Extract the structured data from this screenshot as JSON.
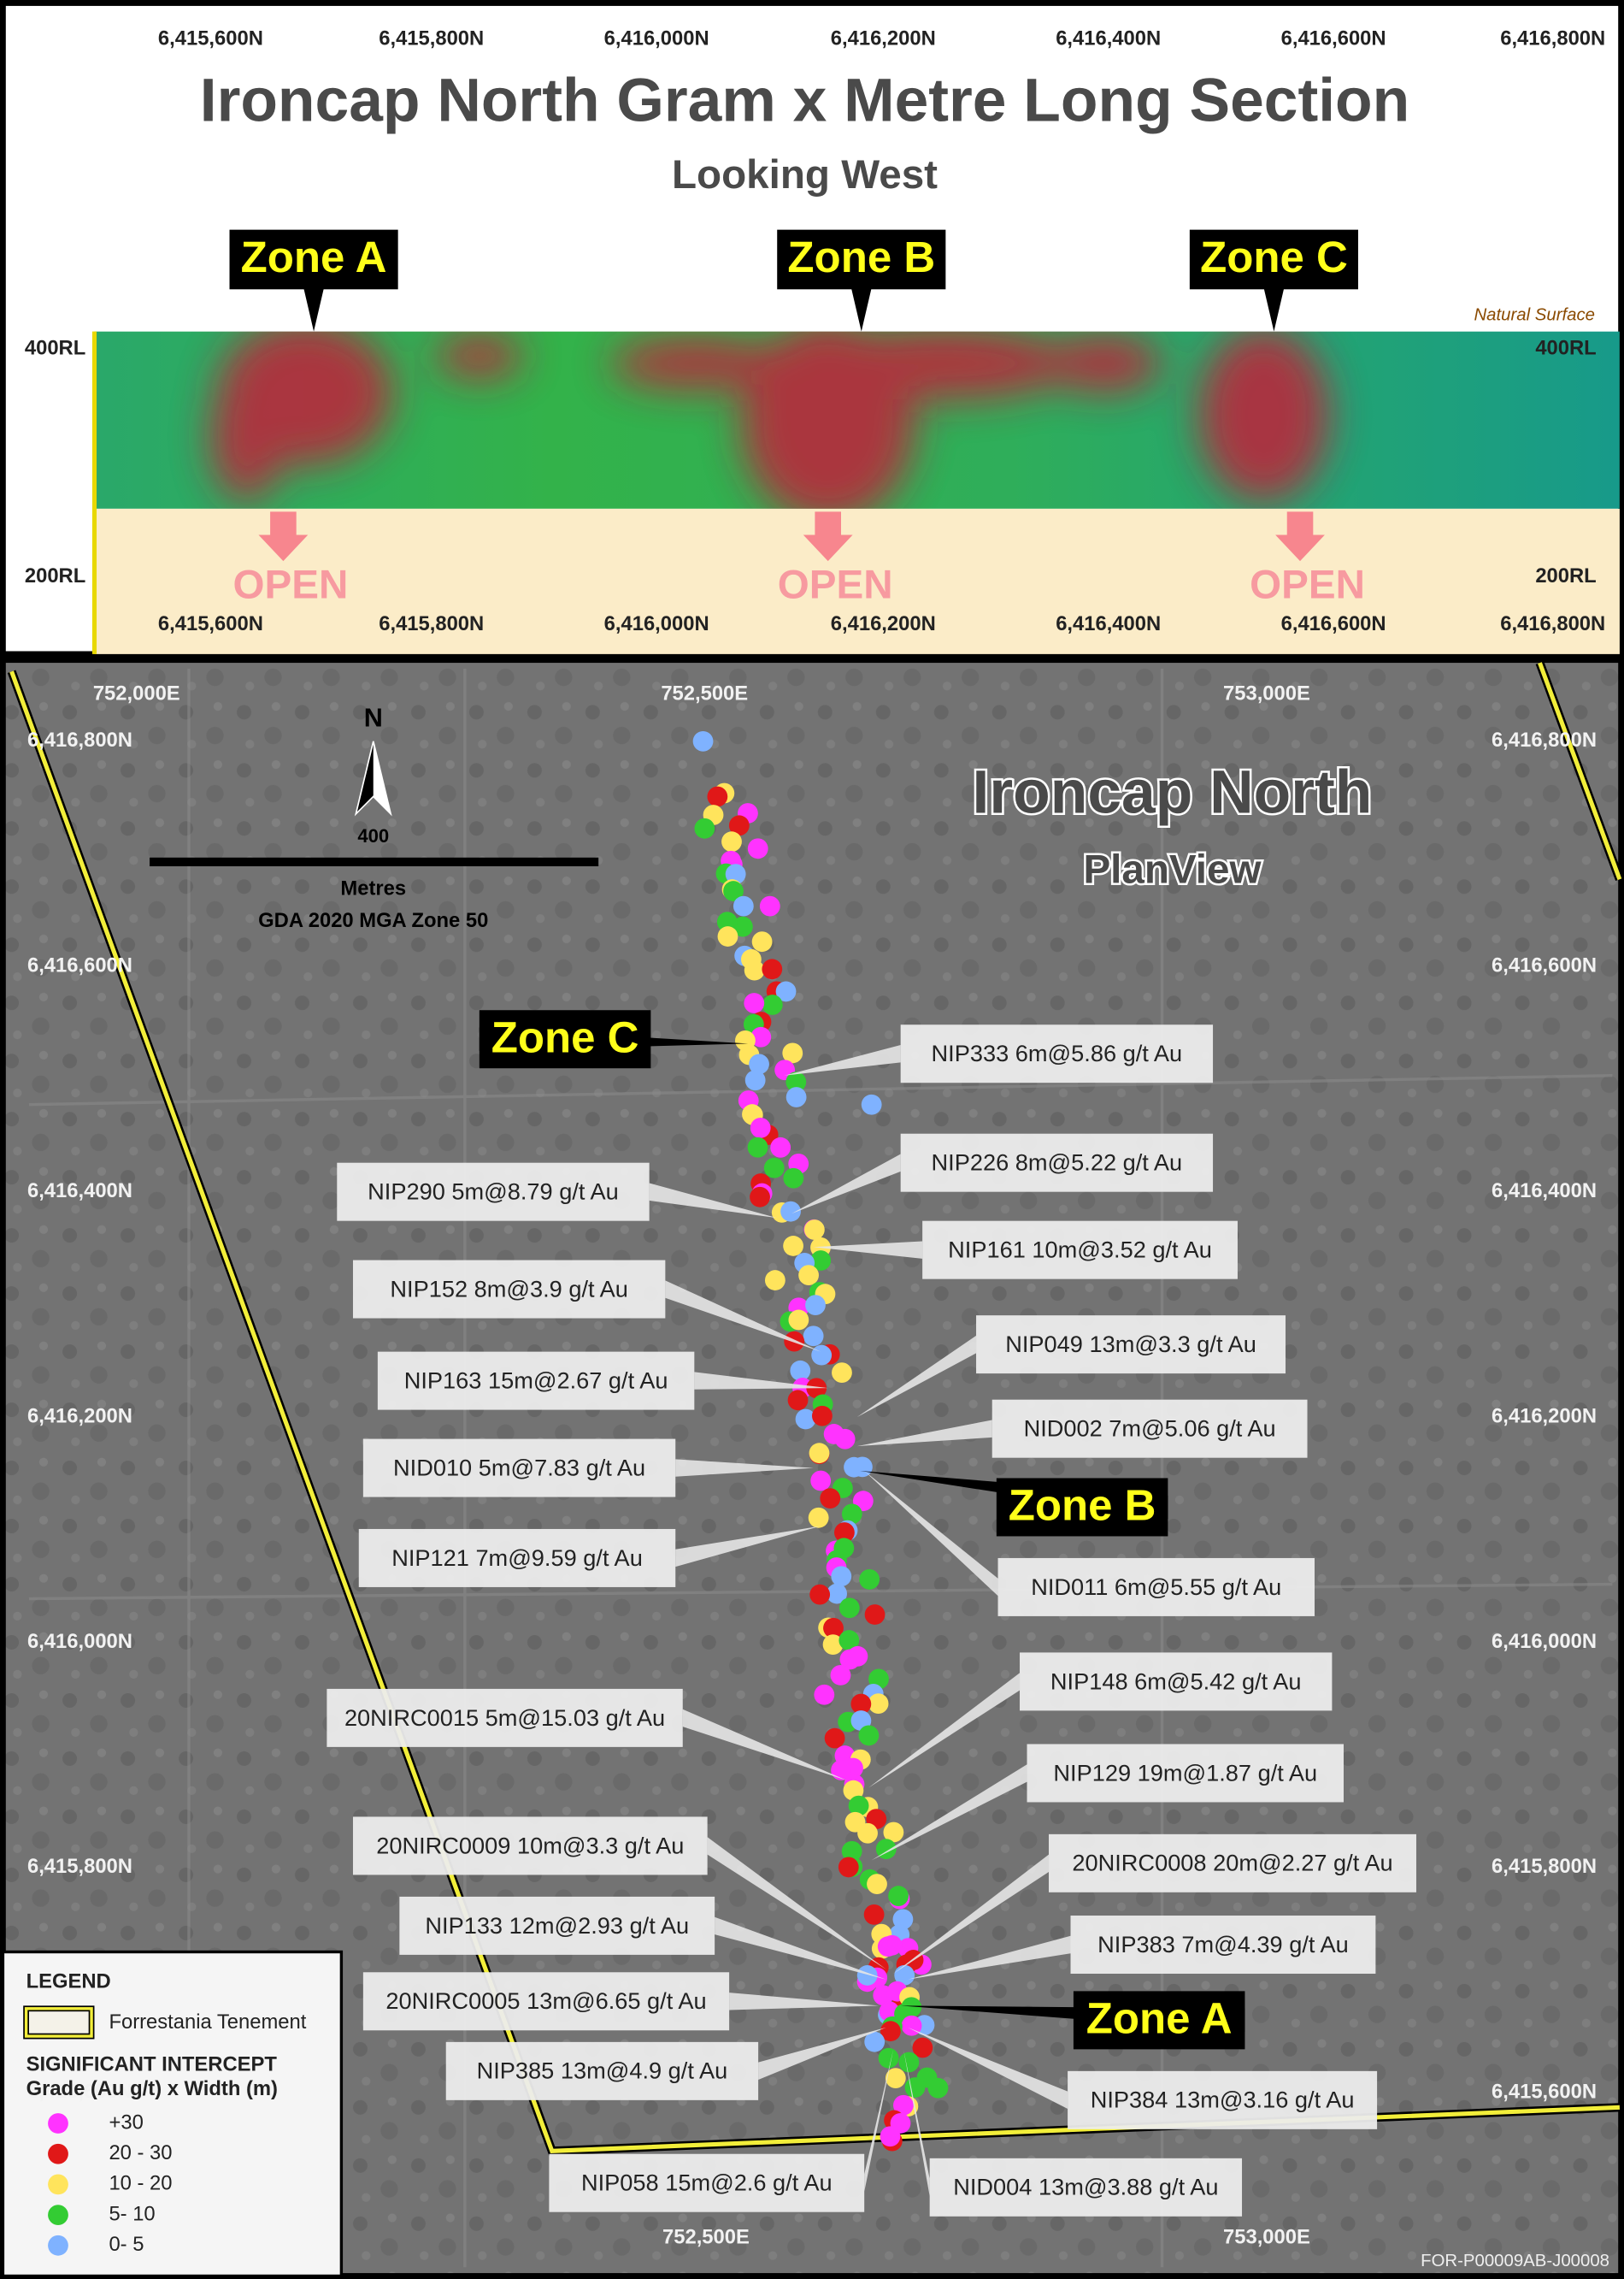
{
  "section": {
    "title": "Ironcap North Gram x Metre Long Section",
    "subtitle": "Looking West",
    "natural_surface": "Natural Surface",
    "northings": [
      "6,415,600N",
      "6,415,800N",
      "6,416,000N",
      "6,416,200N",
      "6,416,400N",
      "6,416,600N",
      "6,416,800N"
    ],
    "rl_labels": [
      "400RL",
      "200RL"
    ],
    "zones": [
      "Zone A",
      "Zone B",
      "Zone C"
    ],
    "open_label": "OPEN"
  },
  "plan": {
    "title": "Ironcap North",
    "subtitle": "PlanView",
    "north": "N",
    "scale_length": "400",
    "scale_unit": "Metres",
    "datum": "GDA 2020 MGA Zone 50",
    "eastings_top": [
      "752,000E",
      "752,500E",
      "753,000E"
    ],
    "eastings_bottom": [
      "752,500E",
      "753,000E"
    ],
    "northings": [
      "6,416,800N",
      "6,416,600N",
      "6,416,400N",
      "6,416,200N",
      "6,416,000N",
      "6,415,800N",
      "6,415,600N"
    ],
    "callouts": [
      "NIP333 6m@5.86 g/t Au",
      "NIP226 8m@5.22 g/t Au",
      "NIP290 5m@8.79 g/t Au",
      "NIP161 10m@3.52 g/t Au",
      "NIP152 8m@3.9 g/t Au",
      "NIP049 13m@3.3 g/t Au",
      "NIP163 15m@2.67 g/t Au",
      "NID002 7m@5.06 g/t Au",
      "NID010 5m@7.83 g/t Au",
      "NIP121 7m@9.59 g/t Au",
      "NID011 6m@5.55 g/t Au",
      "NIP148 6m@5.42 g/t Au",
      "20NIRC0015 5m@15.03 g/t Au",
      "NIP129 19m@1.87 g/t Au",
      "20NIRC0009 10m@3.3 g/t Au",
      "20NIRC0008 20m@2.27 g/t Au",
      "NIP133 12m@2.93 g/t Au",
      "NIP383 7m@4.39 g/t Au",
      "20NIRC0005 13m@6.65 g/t Au",
      "NIP385 13m@4.9 g/t Au",
      "NIP384 13m@3.16 g/t Au",
      "NIP058 15m@2.6 g/t Au",
      "NID004 13m@3.88 g/t Au"
    ],
    "code": "FOR-P00009AB-J00008"
  },
  "legend": {
    "title": "LEGEND",
    "tenement": "Forrestania Tenement",
    "intercept_title": "SIGNIFICANT INTERCEPT",
    "intercept_subtitle": "Grade (Au g/t) x Width (m)",
    "classes": [
      {
        "label": "+30",
        "color": "#ff33ff"
      },
      {
        "label": "20 - 30",
        "color": "#e01818"
      },
      {
        "label": "10 - 20",
        "color": "#ffe45c"
      },
      {
        "label": "5- 10",
        "color": "#33cc33"
      },
      {
        "label": "0- 5",
        "color": "#7fb2ff"
      }
    ]
  }
}
